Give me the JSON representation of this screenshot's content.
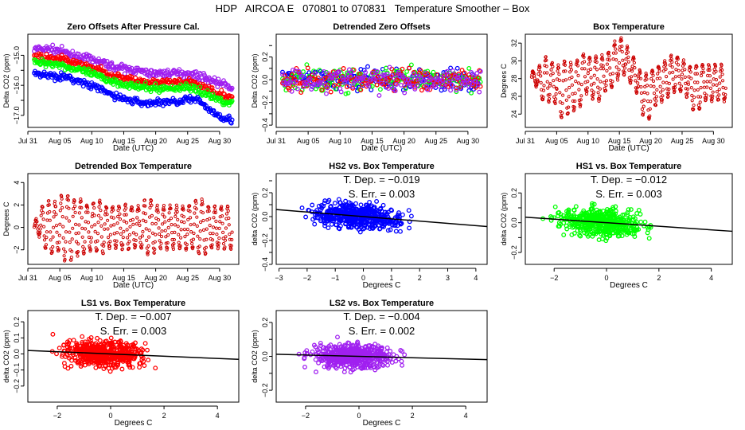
{
  "title": "HDP   AIRCOA E   070801 to 070831   Temperature Smoother – Box",
  "colors": {
    "HS2": "#0000ff",
    "HS1": "#00ff00",
    "LS1": "#ff0000",
    "LS2": "#a020f0",
    "box": "#cc0000",
    "fit": "#000000"
  },
  "chart_data": [
    {
      "id": "zero-offsets",
      "type": "scatter",
      "title": "Zero Offsets After Pressure Cal.",
      "xlabel": "Date (UTC)",
      "ylabel": "Delta CO2 (ppm)",
      "xticks": [
        "Jul 31",
        "Aug 05",
        "Aug 10",
        "Aug 15",
        "Aug 20",
        "Aug 25",
        "Aug 30"
      ],
      "xlim_days": [
        0,
        33
      ],
      "ylim": [
        -17.4,
        -14.3
      ],
      "yticks": [
        -15.0,
        -15.5,
        -16.0,
        -16.5,
        -17.0
      ],
      "ytick_labels": [
        "-15.0",
        "",
        "-16.0",
        "",
        "-17.0"
      ],
      "x_days": [
        1,
        3,
        5,
        7,
        9,
        11,
        13,
        15,
        17,
        19,
        21,
        23,
        25,
        27,
        29,
        31,
        32
      ],
      "series": [
        {
          "key": "LS2",
          "values": [
            -14.8,
            -14.8,
            -14.85,
            -15.0,
            -15.1,
            -15.2,
            -15.35,
            -15.45,
            -15.5,
            -15.6,
            -15.6,
            -15.6,
            -15.6,
            -15.7,
            -15.85,
            -16.0,
            -16.1
          ]
        },
        {
          "key": "LS1",
          "values": [
            -15.05,
            -15.1,
            -15.1,
            -15.25,
            -15.35,
            -15.5,
            -15.65,
            -15.75,
            -15.85,
            -15.95,
            -15.9,
            -15.9,
            -15.9,
            -16.0,
            -16.2,
            -16.35,
            -16.4
          ]
        },
        {
          "key": "HS1",
          "values": [
            -15.25,
            -15.25,
            -15.3,
            -15.45,
            -15.55,
            -15.7,
            -15.85,
            -15.95,
            -16.05,
            -16.1,
            -16.1,
            -16.1,
            -16.05,
            -16.2,
            -16.4,
            -16.55,
            -16.6
          ]
        },
        {
          "key": "HS2",
          "values": [
            -15.6,
            -15.65,
            -15.7,
            -15.8,
            -15.95,
            -16.1,
            -16.3,
            -16.45,
            -16.55,
            -16.6,
            -16.55,
            -16.55,
            -16.45,
            -16.55,
            -16.9,
            -17.1,
            -17.15
          ]
        }
      ]
    },
    {
      "id": "detrended-zero",
      "type": "scatter",
      "title": "Detrended Zero Offsets",
      "xlabel": "Date (UTC)",
      "ylabel": "Delta CO2 (ppm)",
      "xticks": [
        "Jul 31",
        "Aug 05",
        "Aug 10",
        "Aug 15",
        "Aug 20",
        "Aug 25",
        "Aug 30"
      ],
      "xlim_days": [
        0,
        33
      ],
      "ylim": [
        -0.42,
        0.4
      ],
      "yticks": [
        0.2,
        0.0,
        -0.2,
        -0.4
      ],
      "ytick_labels": [
        "0.2",
        "0.0",
        "-0.2",
        "-0.4"
      ],
      "minor_yticks": [
        0.3,
        0.1,
        -0.1,
        -0.3
      ],
      "series_keys": [
        "HS2",
        "HS1",
        "LS1",
        "LS2"
      ],
      "spread_ppm": 0.1
    },
    {
      "id": "box-temperature",
      "type": "line",
      "title": "Box Temperature",
      "xlabel": "Date (UTC)",
      "ylabel": "Degrees C",
      "xticks": [
        "Jul 31",
        "Aug 05",
        "Aug 10",
        "Aug 15",
        "Aug 20",
        "Aug 25",
        "Aug 30"
      ],
      "xlim_days": [
        0,
        33
      ],
      "ylim": [
        22.5,
        33
      ],
      "yticks": [
        24,
        26,
        28,
        30,
        32
      ],
      "ytick_labels": [
        "24",
        "26",
        "28",
        "30",
        "32"
      ],
      "x_days": [
        1,
        2,
        3,
        4,
        5,
        6,
        7,
        8,
        9,
        10,
        11,
        12,
        13,
        14,
        15,
        16,
        17,
        18,
        19,
        20,
        21,
        22,
        23,
        24,
        25,
        26,
        27,
        28,
        29,
        30,
        31,
        32
      ],
      "daily_mean": [
        28,
        27.5,
        28,
        27.5,
        26.5,
        27,
        27,
        27.5,
        28.5,
        28,
        28,
        28.5,
        29,
        30,
        30.5,
        29.5,
        28.5,
        26.5,
        26,
        27,
        27.5,
        28,
        28.5,
        28.5,
        28,
        27,
        27,
        27.5,
        27.5,
        27.5,
        27.5,
        28
      ],
      "daily_amplitude": [
        0.8,
        2,
        2.5,
        2.3,
        3,
        3,
        2.6,
        2.6,
        2.2,
        2.3,
        2.5,
        2,
        2,
        2,
        2,
        2,
        2,
        2.5,
        2.5,
        2,
        2,
        2,
        2,
        2,
        2,
        2.5,
        2.5,
        2,
        2,
        2,
        2,
        1
      ]
    },
    {
      "id": "detrended-box",
      "type": "line",
      "title": "Detrended Box Temperature",
      "xlabel": "Date (UTC)",
      "ylabel": "Degrees C",
      "xticks": [
        "Jul 31",
        "Aug 05",
        "Aug 10",
        "Aug 15",
        "Aug 20",
        "Aug 25",
        "Aug 30"
      ],
      "xlim_days": [
        0,
        33
      ],
      "ylim": [
        -3.3,
        4.8
      ],
      "yticks": [
        -2,
        0,
        2,
        4
      ],
      "ytick_labels": [
        "-2",
        "0",
        "2",
        "4"
      ]
    },
    {
      "id": "hs2-vs-box",
      "type": "scatter",
      "key": "HS2",
      "title": "HS2 vs. Box Temperature",
      "xlabel": "Degrees C",
      "ylabel": "delta CO2 (ppm)",
      "xlim": [
        -3.1,
        4.4
      ],
      "xticks": [
        -3,
        -2,
        -1,
        0,
        1,
        2,
        3,
        4
      ],
      "ylim": [
        -0.4,
        0.36
      ],
      "yticks": [
        0.2,
        0.0,
        -0.2,
        -0.4
      ],
      "ytick_labels": [
        "0.2",
        "0.0",
        "-0.2",
        "-0.4"
      ],
      "minor_yticks": [
        0.3,
        0.1,
        -0.1,
        -0.3
      ],
      "t_dep_label": "T. Dep. =  −0.019",
      "s_err_label": "S. Err. =  0.003",
      "slope": -0.019,
      "intercept": 0.0,
      "spread": 0.1
    },
    {
      "id": "hs1-vs-box",
      "type": "scatter",
      "key": "HS1",
      "title": "HS1 vs. Box Temperature",
      "xlabel": "Degrees C",
      "ylabel": "delta CO2 (ppm)",
      "xlim": [
        -3.1,
        4.8
      ],
      "xticks": [
        -2,
        0,
        2,
        4
      ],
      "ylim": [
        -0.28,
        0.33
      ],
      "yticks": [
        0.2,
        0.1,
        0.0,
        -0.1,
        -0.2
      ],
      "ytick_labels": [
        "0.2",
        "",
        "0.0",
        "",
        "-0.2"
      ],
      "t_dep_label": "T. Dep. =  −0.012",
      "s_err_label": "S. Err. =  0.003",
      "slope": -0.012,
      "intercept": 0.0,
      "spread": 0.09
    },
    {
      "id": "ls1-vs-box",
      "type": "scatter",
      "key": "LS1",
      "title": "LS1 vs. Box Temperature",
      "xlabel": "Degrees C",
      "ylabel": "delta CO2 (ppm)",
      "xlim": [
        -3.1,
        4.8
      ],
      "xticks": [
        -2,
        0,
        2,
        4
      ],
      "ylim": [
        -0.3,
        0.27
      ],
      "yticks": [
        0.2,
        0.1,
        0.0,
        -0.1,
        -0.2
      ],
      "ytick_labels": [
        "0.2",
        "0.1",
        "0.0",
        "-0.1",
        "-0.2"
      ],
      "t_dep_label": "T. Dep. =  −0.007",
      "s_err_label": "S. Err. =  0.003",
      "slope": -0.007,
      "intercept": 0.0,
      "spread": 0.08
    },
    {
      "id": "ls2-vs-box",
      "type": "scatter",
      "key": "LS2",
      "title": "LS2 vs. Box Temperature",
      "xlabel": "Degrees C",
      "ylabel": "delta CO2 (ppm)",
      "xlim": [
        -3.1,
        4.8
      ],
      "xticks": [
        -2,
        0,
        2,
        4
      ],
      "ylim": [
        -0.27,
        0.27
      ],
      "yticks": [
        0.2,
        0.1,
        0.0,
        -0.1,
        -0.2
      ],
      "ytick_labels": [
        "0.2",
        "",
        "0.0",
        "",
        "-0.2"
      ],
      "t_dep_label": "T. Dep. =  −0.004",
      "s_err_label": "S. Err. =  0.002",
      "slope": -0.004,
      "intercept": 0.0,
      "spread": 0.07
    }
  ]
}
